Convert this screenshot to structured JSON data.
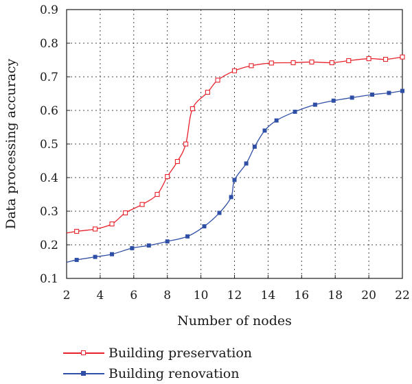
{
  "chart_data": {
    "type": "line",
    "title": "",
    "xlabel": "Number of nodes",
    "ylabel": "Data processing accuracy",
    "xlim": [
      2,
      22
    ],
    "ylim": [
      0.1,
      0.9
    ],
    "xticks": [
      "2",
      "4",
      "6",
      "8",
      "10",
      "12",
      "14",
      "16",
      "18",
      "20",
      "22"
    ],
    "yticks": [
      "0.1",
      "0.2",
      "0.3",
      "0.4",
      "0.5",
      "0.6",
      "0.7",
      "0.8",
      "0.9"
    ],
    "grid": true,
    "legend_position": "bottom",
    "series": [
      {
        "name": "Building preservation",
        "color": "#e8202a",
        "marker": "hollow-square",
        "x": [
          2.0,
          2.6,
          3.7,
          4.7,
          5.5,
          6.5,
          7.4,
          8.0,
          8.6,
          9.1,
          9.5,
          10.4,
          11.0,
          12.0,
          13.0,
          14.2,
          15.5,
          16.6,
          17.8,
          18.8,
          20.0,
          21.0,
          22.0
        ],
        "y": [
          0.235,
          0.24,
          0.247,
          0.262,
          0.295,
          0.32,
          0.35,
          0.403,
          0.448,
          0.5,
          0.605,
          0.654,
          0.69,
          0.718,
          0.733,
          0.741,
          0.742,
          0.744,
          0.742,
          0.748,
          0.754,
          0.752,
          0.759
        ]
      },
      {
        "name": "Building renovation",
        "color": "#2e4fa5",
        "marker": "filled-square",
        "x": [
          2.0,
          2.6,
          3.7,
          4.7,
          5.9,
          6.9,
          8.0,
          9.2,
          10.2,
          11.1,
          11.8,
          12.0,
          12.7,
          13.2,
          13.8,
          14.5,
          15.6,
          16.8,
          17.9,
          19.0,
          20.2,
          21.2,
          22.0
        ],
        "y": [
          0.148,
          0.155,
          0.164,
          0.172,
          0.19,
          0.198,
          0.21,
          0.225,
          0.255,
          0.295,
          0.342,
          0.393,
          0.442,
          0.492,
          0.54,
          0.57,
          0.596,
          0.617,
          0.629,
          0.638,
          0.647,
          0.652,
          0.658
        ]
      }
    ]
  }
}
